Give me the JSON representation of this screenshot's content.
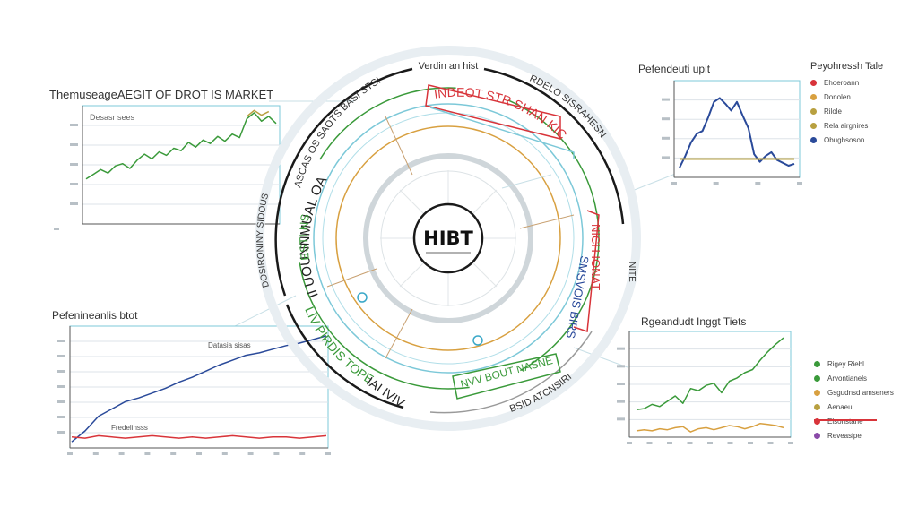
{
  "colors": {
    "green": "#3a9a3a",
    "blue": "#2a4a9a",
    "red": "#d8343a",
    "orange": "#d8a040",
    "olive": "#b8a040",
    "purple": "#8a4aa8",
    "cyan": "#7cc8d8",
    "grid": "#dde3e8"
  },
  "hub": {
    "title": "HIBT",
    "top_label": "Verdin an hist",
    "ring_left": "II UOUNNMUAL OA",
    "ring_right_top": "INDEOT STR SHAN KIC",
    "ring_left_green": "ESTI NSS",
    "ring_lower_green": "LIV PIRDIS TOPE",
    "ring_lower_left": "IAI IVIV",
    "ring_right_red": "NICH IONAT",
    "ring_right_blue": "SMSVOIS BIRS",
    "ring_lower_cyan": "NVV BOUT NASNE",
    "outer_top_left": "ASCAS OS SAOTS BASI STSI",
    "outer_top_right": "RDELO SISRAHESN",
    "outer_left": "DOSIRONINY SIDOUS",
    "outer_right": "NITE",
    "outer_bottom": "BSID ATCNSIRIN"
  },
  "charts": [
    {
      "id": "top-left",
      "type": "line",
      "title": "ThemuseageAEGIT OF DROT IS MARKET",
      "legend_text": "Desasr sees",
      "series": [
        {
          "color": "green",
          "values": [
            3.8,
            4.2,
            4.6,
            4.3,
            4.9,
            5.1,
            4.7,
            5.4,
            5.9,
            5.5,
            6.1,
            5.8,
            6.4,
            6.2,
            6.9,
            6.5,
            7.1,
            6.8,
            7.4,
            7.0,
            7.6,
            7.3,
            8.9,
            9.4,
            8.7,
            9.1,
            8.5
          ]
        },
        {
          "color": "olive",
          "values": [
            null,
            null,
            null,
            null,
            null,
            null,
            null,
            null,
            null,
            null,
            null,
            null,
            null,
            null,
            null,
            null,
            null,
            null,
            null,
            null,
            null,
            null,
            9.1,
            9.6,
            9.2,
            9.5,
            null
          ]
        }
      ]
    },
    {
      "id": "top-right",
      "type": "line",
      "title": "Pefendeuti upit",
      "x_ticks": [
        "",
        "",
        ""
      ],
      "series": [
        {
          "color": "blue",
          "values": [
            1.0,
            2.2,
            3.6,
            4.5,
            4.8,
            6.2,
            7.8,
            8.2,
            7.6,
            6.9,
            7.8,
            6.4,
            5.1,
            2.4,
            1.6,
            2.2,
            2.6,
            1.8,
            1.5,
            1.2,
            1.4
          ]
        },
        {
          "color": "olive",
          "values": [
            1.9,
            1.9,
            1.9,
            1.9,
            1.9,
            1.9,
            1.9,
            1.9,
            1.9,
            1.9,
            1.9,
            1.9,
            1.9,
            1.9,
            1.9,
            1.9,
            1.9,
            1.9,
            1.9,
            1.9,
            1.9
          ]
        }
      ]
    },
    {
      "id": "bottom-left",
      "type": "line",
      "title": "Pefenineanlis btot",
      "label_upper": "Datasia sisas",
      "label_lower": "Fredelinsss",
      "series": [
        {
          "color": "blue",
          "values": [
            0.5,
            1.4,
            2.6,
            3.2,
            3.8,
            4.1,
            4.5,
            4.9,
            5.4,
            5.8,
            6.3,
            6.8,
            7.2,
            7.6,
            7.8,
            8.1,
            8.4,
            8.6,
            8.9,
            9.2
          ]
        },
        {
          "color": "red",
          "values": [
            0.9,
            0.8,
            1.0,
            0.9,
            0.8,
            0.9,
            1.0,
            0.9,
            0.8,
            0.9,
            0.8,
            0.9,
            1.0,
            0.9,
            0.8,
            0.9,
            0.9,
            0.8,
            0.9,
            1.0
          ]
        }
      ]
    },
    {
      "id": "bottom-right",
      "type": "line",
      "title": "Rgeandudt Inggt Tiets",
      "series": [
        {
          "color": "green",
          "values": [
            2.6,
            2.7,
            3.1,
            2.9,
            3.4,
            3.9,
            3.2,
            4.6,
            4.4,
            4.9,
            5.1,
            4.2,
            5.3,
            5.6,
            6.1,
            6.4,
            7.3,
            8.1,
            8.8,
            9.4
          ]
        },
        {
          "color": "orange",
          "values": [
            0.6,
            0.7,
            0.6,
            0.8,
            0.7,
            0.9,
            1.0,
            0.5,
            0.8,
            0.9,
            0.7,
            0.9,
            1.1,
            1.0,
            0.8,
            1.0,
            1.3,
            1.2,
            1.1,
            0.9
          ]
        }
      ]
    }
  ],
  "legend_top_right": {
    "title": "Peyohressh Tale",
    "items": [
      {
        "label": "Ehoeroann",
        "color": "red"
      },
      {
        "label": "Donolen",
        "color": "orange"
      },
      {
        "label": "Rilole",
        "color": "olive"
      },
      {
        "label": "Rela airgnires",
        "color": "olive"
      },
      {
        "label": "Obughsoson",
        "color": "blue"
      }
    ]
  },
  "legend_bottom_right": {
    "items": [
      {
        "label": "Rigey Riebl",
        "color": "green"
      },
      {
        "label": "Arvontianels",
        "color": "green"
      },
      {
        "label": "Gsgudnsd amseners",
        "color": "orange"
      },
      {
        "label": "Aenaeu",
        "color": "olive"
      },
      {
        "label": "Elsonstane",
        "color": "red"
      },
      {
        "label": "Reveasipe",
        "color": "purple"
      }
    ]
  }
}
